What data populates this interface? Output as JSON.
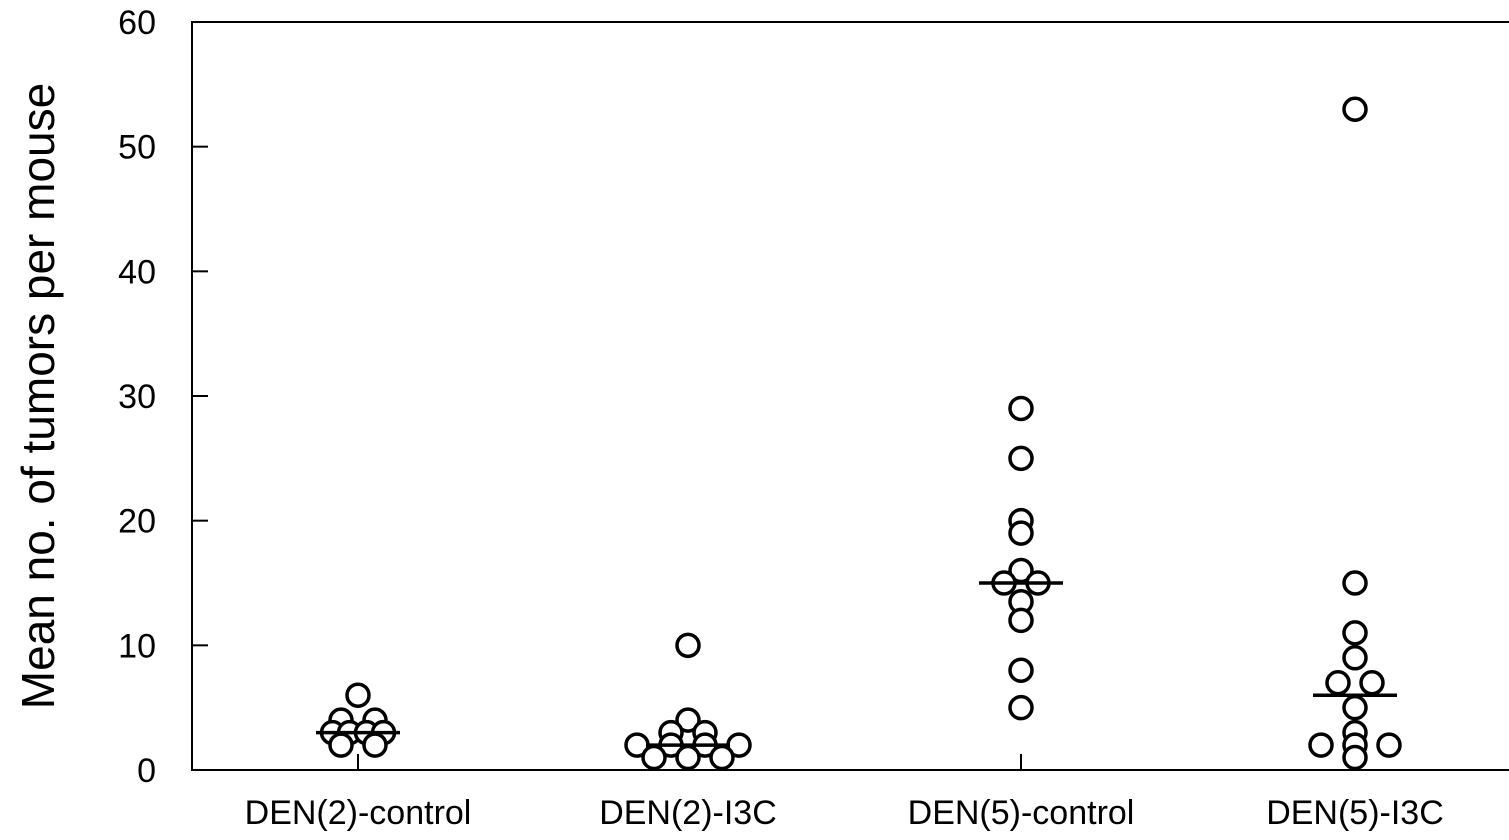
{
  "chart_data": {
    "type": "scatter",
    "title": "",
    "xlabel": "",
    "ylabel": "Mean no. of tumors per mouse",
    "ylim": [
      0,
      60
    ],
    "yticks": [
      "0",
      "10",
      "20",
      "30",
      "40",
      "50",
      "60"
    ],
    "categories": [
      "DEN(2)-control",
      "DEN(2)-I3C",
      "DEN(5)-control",
      "DEN(5)-I3C"
    ],
    "groups": [
      {
        "category": "DEN(2)-control",
        "points": [
          {
            "offset": 0,
            "y": 6
          },
          {
            "offset": -1,
            "y": 4
          },
          {
            "offset": 1,
            "y": 4
          },
          {
            "offset": -1.5,
            "y": 3
          },
          {
            "offset": -0.5,
            "y": 3
          },
          {
            "offset": 0.5,
            "y": 3
          },
          {
            "offset": 1.5,
            "y": 3
          },
          {
            "offset": -1,
            "y": 2
          },
          {
            "offset": 1,
            "y": 2
          }
        ],
        "mean": 3
      },
      {
        "category": "DEN(2)-I3C",
        "points": [
          {
            "offset": 0,
            "y": 10
          },
          {
            "offset": 0,
            "y": 4
          },
          {
            "offset": -1,
            "y": 3
          },
          {
            "offset": 1,
            "y": 3
          },
          {
            "offset": -3,
            "y": 2
          },
          {
            "offset": -1,
            "y": 2
          },
          {
            "offset": 1,
            "y": 2
          },
          {
            "offset": 3,
            "y": 2
          },
          {
            "offset": -2,
            "y": 1
          },
          {
            "offset": 0,
            "y": 1
          },
          {
            "offset": 2,
            "y": 1
          }
        ],
        "mean": 2
      },
      {
        "category": "DEN(5)-control",
        "points": [
          {
            "offset": 0,
            "y": 29
          },
          {
            "offset": 0,
            "y": 25
          },
          {
            "offset": 0,
            "y": 20
          },
          {
            "offset": 0,
            "y": 19
          },
          {
            "offset": 0,
            "y": 16
          },
          {
            "offset": -1,
            "y": 15
          },
          {
            "offset": 1,
            "y": 15
          },
          {
            "offset": 0,
            "y": 13.5
          },
          {
            "offset": 0,
            "y": 12
          },
          {
            "offset": 0,
            "y": 8
          },
          {
            "offset": 0,
            "y": 5
          }
        ],
        "mean": 15
      },
      {
        "category": "DEN(5)-I3C",
        "points": [
          {
            "offset": 0,
            "y": 53
          },
          {
            "offset": 0,
            "y": 15
          },
          {
            "offset": 0,
            "y": 11
          },
          {
            "offset": 0,
            "y": 9
          },
          {
            "offset": -1,
            "y": 7
          },
          {
            "offset": 1,
            "y": 7
          },
          {
            "offset": 0,
            "y": 5
          },
          {
            "offset": 0,
            "y": 3
          },
          {
            "offset": -2,
            "y": 2
          },
          {
            "offset": 0,
            "y": 2
          },
          {
            "offset": 2,
            "y": 2
          },
          {
            "offset": 0,
            "y": 1
          }
        ],
        "mean": 6
      }
    ],
    "grid": false,
    "legend": "none",
    "colors": {
      "marker_stroke": "#000000",
      "marker_fill": "#ffffff",
      "axis": "#000000"
    }
  }
}
